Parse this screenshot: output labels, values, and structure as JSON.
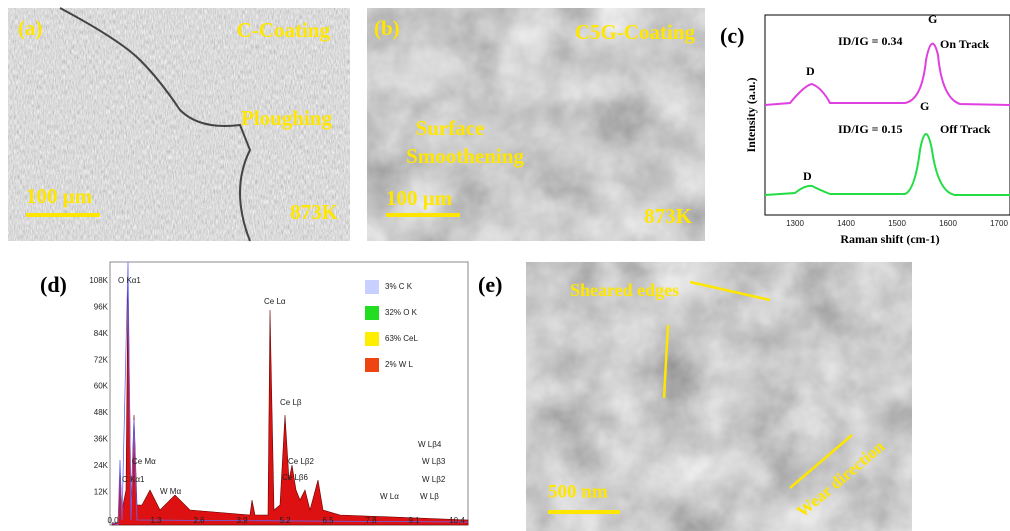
{
  "panel_a": {
    "label": "(a)",
    "title": "C-Coating",
    "annotation": "Ploughing",
    "scale_bar": "100 μm",
    "temperature": "873K"
  },
  "panel_b": {
    "label": "(b)",
    "title": "C5G-Coating",
    "annotation": [
      "Surface",
      "Smoothening"
    ],
    "scale_bar": "100 μm",
    "temperature": "873K"
  },
  "panel_c": {
    "label": "(c)",
    "y_axis": "Intensity (a.u.)",
    "x_axis": "Raman shift (cm-1)",
    "on_track": {
      "ratio": "ID/IG = 0.34",
      "name": "On Track",
      "d_peak": "D",
      "g_peak": "G"
    },
    "off_track": {
      "ratio": "ID/IG = 0.15",
      "name": "Off Track",
      "d_peak": "D",
      "g_peak": "G"
    },
    "x_ticks": [
      "1300",
      "1400",
      "1500",
      "1600",
      "1700"
    ]
  },
  "panel_d": {
    "label": "(d)",
    "legend": [
      {
        "text": "3%   C K",
        "color": "#c8d0ff"
      },
      {
        "text": "32%   O K",
        "color": "#22dd22"
      },
      {
        "text": "63%   CeL",
        "color": "#ffee00"
      },
      {
        "text": "2%   W L",
        "color": "#ee4411"
      }
    ],
    "peaks": [
      "O Kα1",
      "Ce Lα",
      "Ce Lβ",
      "Ce Lβ2",
      "Ce Lβ6",
      "Ce Mα",
      "C Kα1",
      "W Mα",
      "W Lα",
      "W Lβ4",
      "W Lβ3",
      "W Lβ2",
      "W Lβ"
    ],
    "y_ticks": [
      "108K",
      "96K",
      "84K",
      "72K",
      "60K",
      "48K",
      "36K",
      "24K",
      "12K"
    ],
    "x_ticks": [
      "0.0",
      "1.3",
      "2.6",
      "3.9",
      "5.2",
      "6.5",
      "7.8",
      "9.1",
      "10.4"
    ]
  },
  "panel_e": {
    "label": "(e)",
    "annotation": "Sheared edges",
    "scale_bar": "500 nm",
    "direction": "Wear direction"
  }
}
